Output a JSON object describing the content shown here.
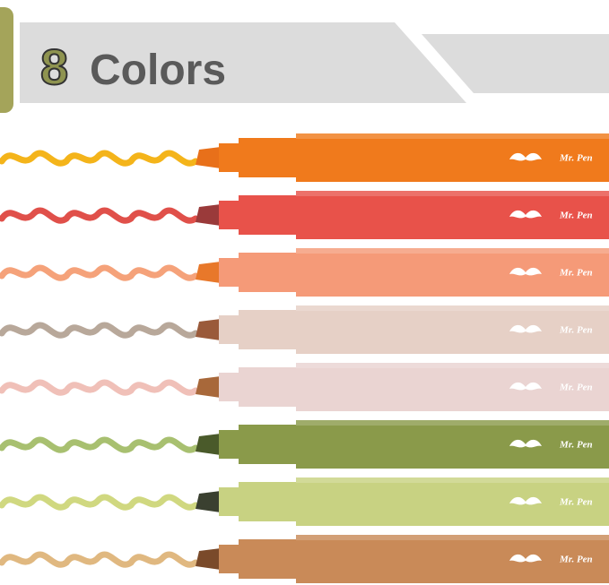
{
  "header": {
    "number": "8",
    "label": "Colors"
  },
  "markers": [
    {
      "brand": "Mr. Pen"
    },
    {
      "brand": "Mr. Pen"
    },
    {
      "brand": "Mr. Pen"
    },
    {
      "brand": "Mr. Pen"
    },
    {
      "brand": "Mr. Pen"
    },
    {
      "brand": "Mr. Pen"
    },
    {
      "brand": "Mr. Pen"
    },
    {
      "brand": "Mr. Pen"
    }
  ]
}
